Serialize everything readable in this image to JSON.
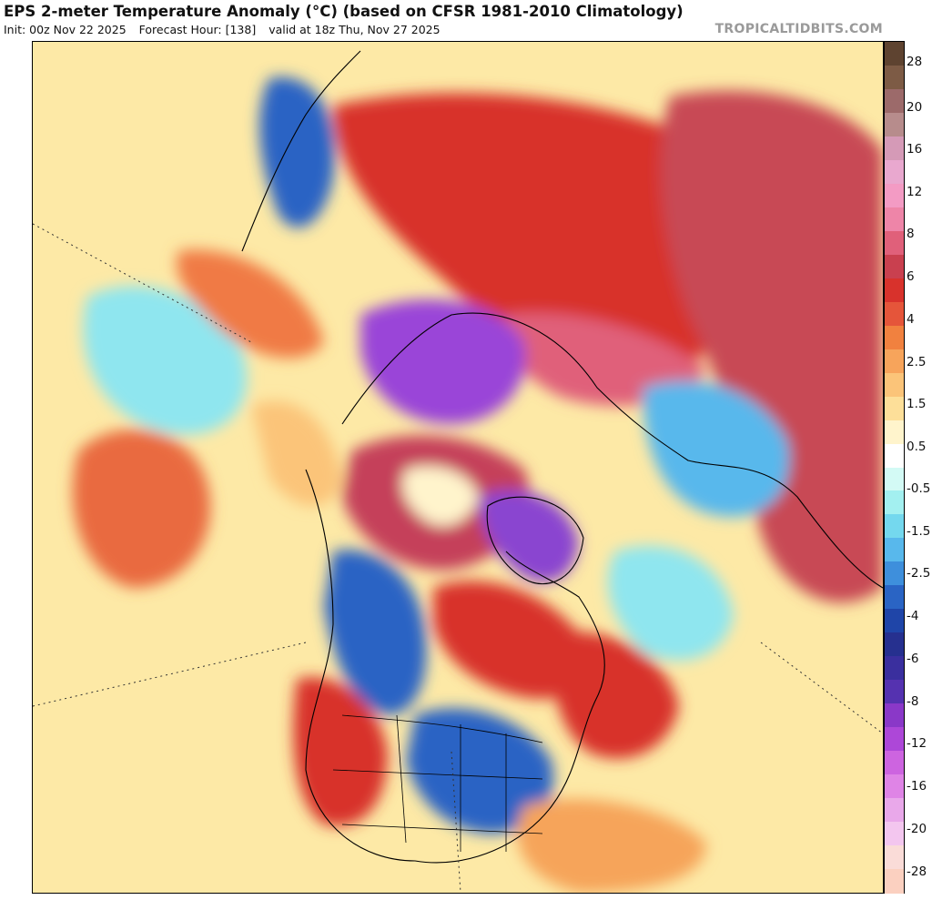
{
  "header": {
    "title": "EPS 2-meter Temperature Anomaly (°C) (based on CFSR 1981-2010 Climatology)",
    "init": "Init: 00z Nov 22 2025",
    "forecast_hour": "Forecast Hour: [138]",
    "valid": "valid at 18z Thu, Nov 27 2025",
    "credit": "TROPICALTIDBITS.COM"
  },
  "colorbar": {
    "colors": [
      "#5e4330",
      "#7d5b45",
      "#9c6a6a",
      "#b78c8c",
      "#d59ab7",
      "#e9a8cf",
      "#f39bc4",
      "#ee85a8",
      "#e0607a",
      "#c9404f",
      "#d8322c",
      "#e5553a",
      "#f1813f",
      "#f7a45b",
      "#fbc479",
      "#fddf99",
      "#fff4cc",
      "#ffffff",
      "#d3faf5",
      "#a3f0f0",
      "#74d8ee",
      "#58b8ec",
      "#3e8fdc",
      "#2a64c4",
      "#1f45a8",
      "#26308f",
      "#3a2f9e",
      "#5532b0",
      "#8a38c8",
      "#ad47d8",
      "#cd64e0",
      "#df84e6",
      "#e9a8ea",
      "#f3c6ef",
      "#fadcd8",
      "#fbd0c0"
    ],
    "labels": [
      {
        "text": "28",
        "t": 0.023
      },
      {
        "text": "20",
        "t": 0.077
      },
      {
        "text": "16",
        "t": 0.126
      },
      {
        "text": "12",
        "t": 0.176
      },
      {
        "text": "8",
        "t": 0.226
      },
      {
        "text": "6",
        "t": 0.276
      },
      {
        "text": "4",
        "t": 0.326
      },
      {
        "text": "2.5",
        "t": 0.376
      },
      {
        "text": "1.5",
        "t": 0.426
      },
      {
        "text": "0.5",
        "t": 0.476
      },
      {
        "text": "-0.5",
        "t": 0.525
      },
      {
        "text": "-1.5",
        "t": 0.575
      },
      {
        "text": "-2.5",
        "t": 0.625
      },
      {
        "text": "-4",
        "t": 0.675
      },
      {
        "text": "-6",
        "t": 0.725
      },
      {
        "text": "-8",
        "t": 0.775
      },
      {
        "text": "-12",
        "t": 0.825
      },
      {
        "text": "-16",
        "t": 0.875
      },
      {
        "text": "-20",
        "t": 0.925
      },
      {
        "text": "-28",
        "t": 0.975
      }
    ]
  },
  "map": {
    "palette": {
      "warm_light": "#fde9a6",
      "warm_mid": "#f6a45a",
      "warm_strong": "#d8322c",
      "warm_extreme": "#c5405a",
      "cool_light": "#8fe6ef",
      "cool_mid": "#3e8fdc",
      "cool_strong": "#2a4fb5",
      "cold_extreme": "#9a45d8"
    },
    "anomaly_regions": [
      {
        "name": "pacific-warm-pool",
        "color": "#e96a40"
      },
      {
        "name": "siberia-warm",
        "color": "#d8322c"
      },
      {
        "name": "asia-warm",
        "color": "#c84a55"
      },
      {
        "name": "east-siberia-cold",
        "color": "#9a45d8"
      },
      {
        "name": "arctic-ocean-warm",
        "color": "#c5405a"
      },
      {
        "name": "greenland-cold",
        "color": "#8a45d0"
      },
      {
        "name": "canada-cold",
        "color": "#2a64c4"
      },
      {
        "name": "eastern-us-cold",
        "color": "#2a64c4"
      },
      {
        "name": "western-us-warm",
        "color": "#d8322c"
      },
      {
        "name": "north-atlantic-warm",
        "color": "#d8322c"
      },
      {
        "name": "europe-cold",
        "color": "#58b8ec"
      },
      {
        "name": "north-pacific-cool",
        "color": "#8fe6ef"
      }
    ]
  }
}
